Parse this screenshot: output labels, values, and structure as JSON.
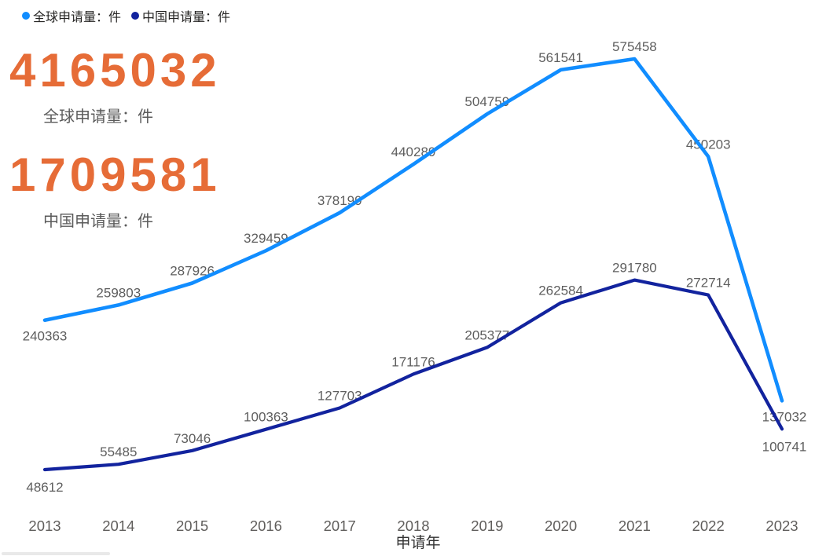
{
  "legend": {
    "items": [
      {
        "label": "全球申请量：件",
        "color": "#118DFF",
        "icon": "circle-dot"
      },
      {
        "label": "中国申请量：件",
        "color": "#12239E",
        "icon": "circle-dot"
      }
    ]
  },
  "kpi_cards": [
    {
      "value": "4165032",
      "label": "全球申请量：件",
      "color": "#E66C37"
    },
    {
      "value": "1709581",
      "label": "中国申请量：件",
      "color": "#E66C37"
    }
  ],
  "chart_data": {
    "type": "line",
    "title": "",
    "xlabel": "申请年",
    "ylabel": "",
    "x": [
      "2013",
      "2014",
      "2015",
      "2016",
      "2017",
      "2018",
      "2019",
      "2020",
      "2021",
      "2022",
      "2023"
    ],
    "series": [
      {
        "name": "全球申请量：件",
        "color": "#118DFF",
        "values": [
          240363,
          259803,
          287926,
          329459,
          378199,
          440289,
          504759,
          561541,
          575458,
          450203,
          137032
        ]
      },
      {
        "name": "中国申请量：件",
        "color": "#12239E",
        "values": [
          48612,
          55485,
          73046,
          100363,
          127703,
          171176,
          205377,
          262584,
          291780,
          272714,
          100741
        ]
      }
    ],
    "ylim": [
      0,
      620000
    ],
    "grid": false,
    "y_axis_visible": false,
    "data_labels": true,
    "legend_position": "top-left"
  }
}
